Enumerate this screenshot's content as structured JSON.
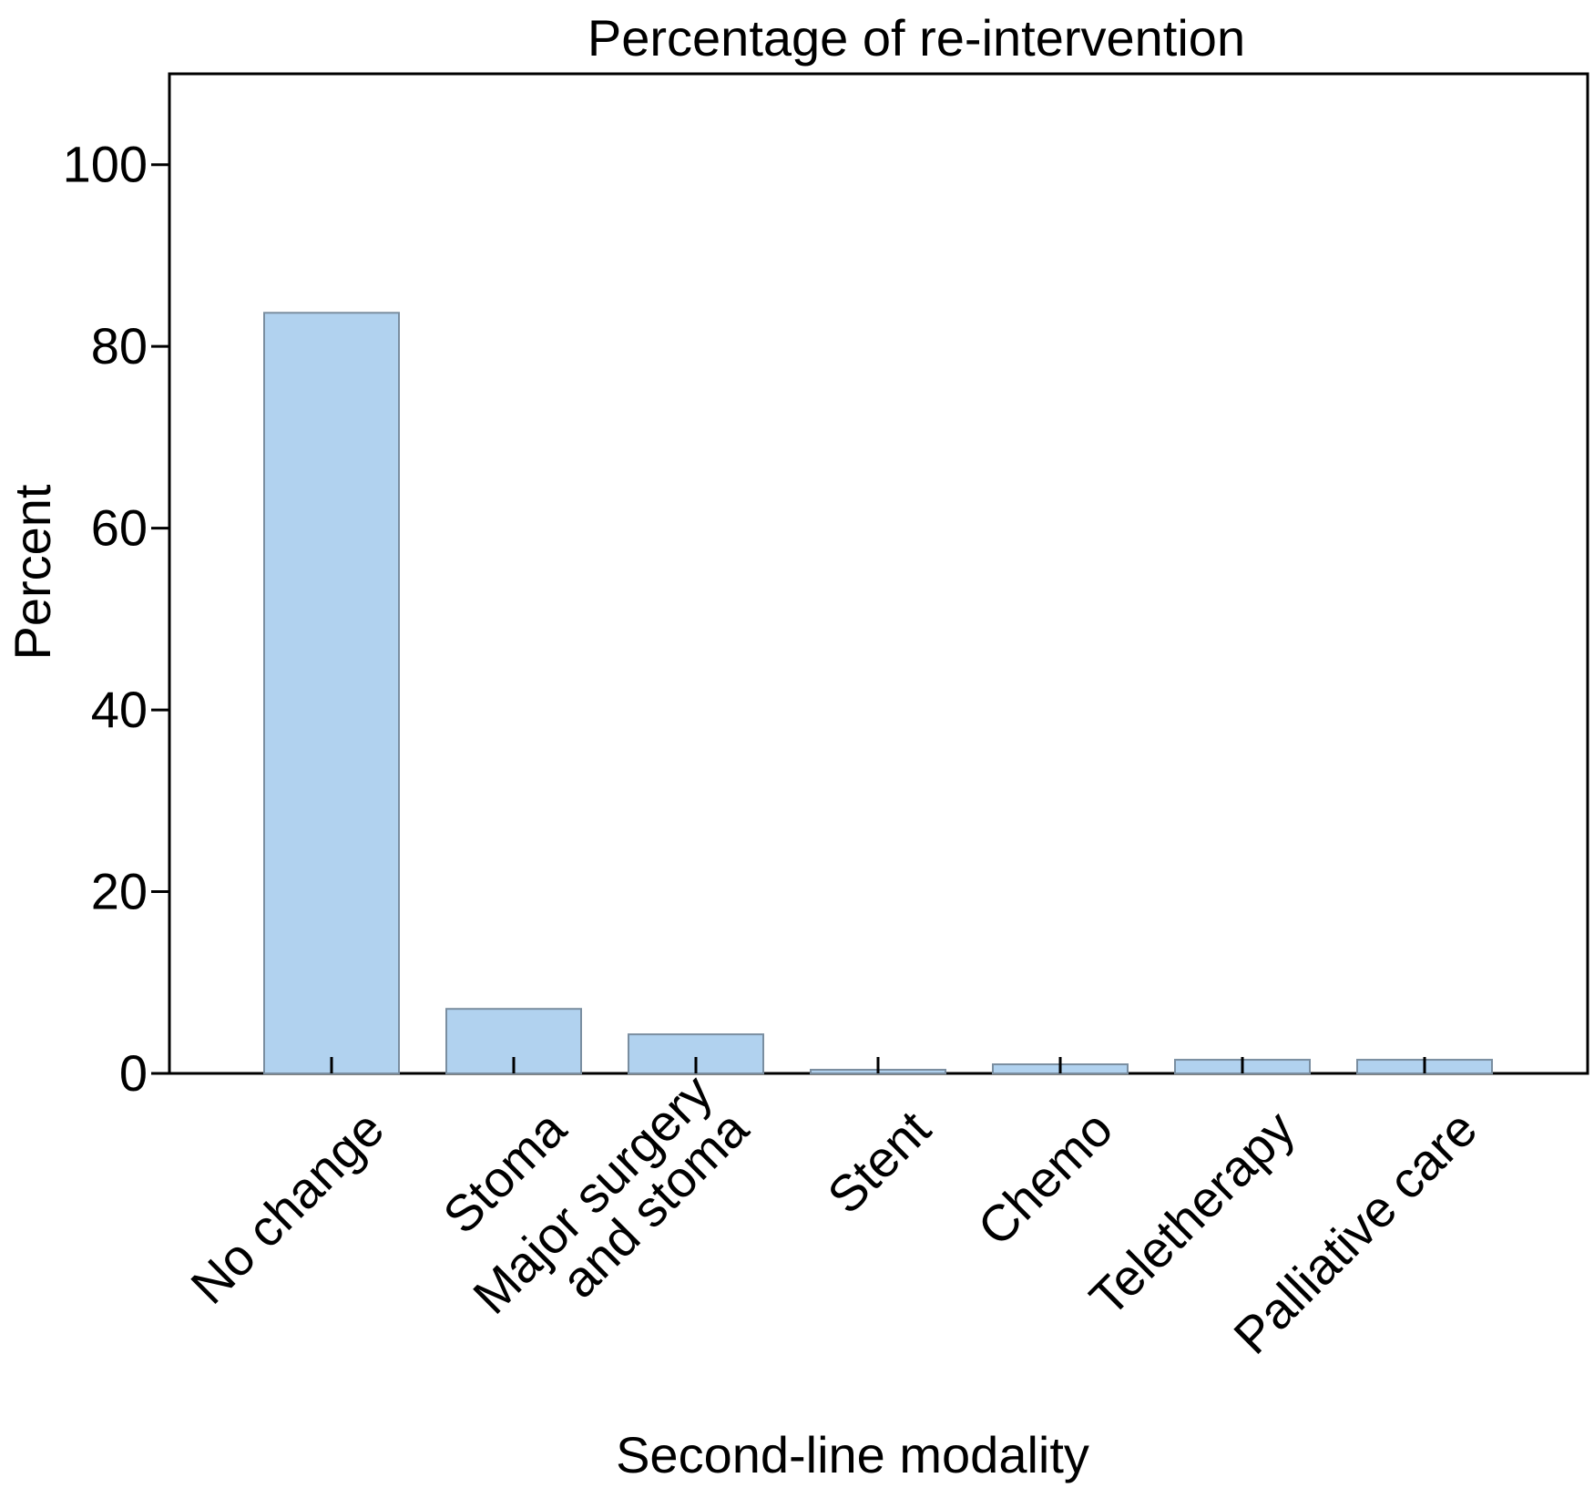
{
  "chart_data": {
    "type": "bar",
    "title": "Percentage of re-intervention",
    "xlabel": "Second-line modality",
    "ylabel": "Percent",
    "categories": [
      [
        "No change"
      ],
      [
        "Stoma"
      ],
      [
        "Major surgery",
        "and stoma"
      ],
      [
        "Stent"
      ],
      [
        "Chemo"
      ],
      [
        "Teletherapy"
      ],
      [
        "Palliative care"
      ]
    ],
    "values": [
      83.7,
      7.1,
      4.3,
      0.4,
      1.0,
      1.5,
      1.5
    ],
    "ylim": [
      0,
      110
    ],
    "yticks": [
      0,
      20,
      40,
      60,
      80,
      100
    ],
    "grid": false,
    "legend": "none",
    "colors": {
      "bar_fill": "#b1d2ef",
      "bar_stroke": "#7a8ea0",
      "axis": "#000000"
    }
  }
}
